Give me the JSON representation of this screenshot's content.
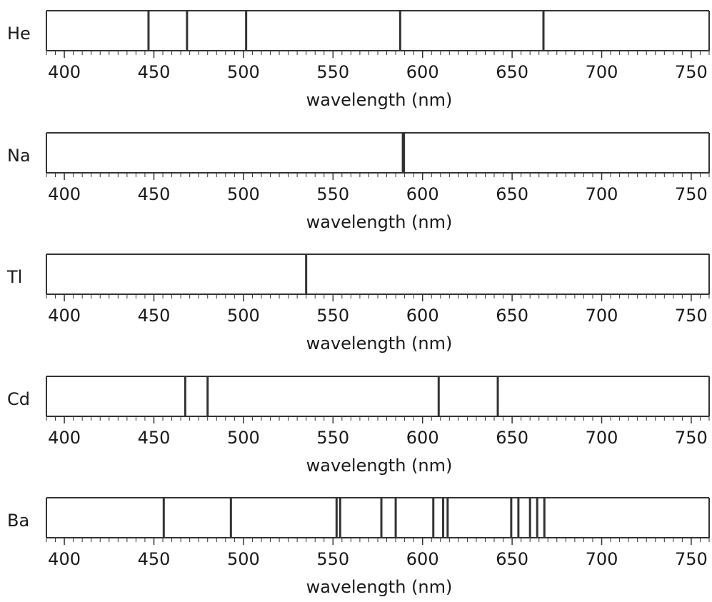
{
  "chart_data": [
    {
      "type": "spectrum",
      "element": "He",
      "xlabel": "wavelength (nm)",
      "xlim": [
        390,
        760
      ],
      "tick_labels": [
        "400",
        "450",
        "500",
        "550",
        "600",
        "650",
        "700",
        "750"
      ],
      "tick_values": [
        400,
        450,
        500,
        550,
        600,
        650,
        700,
        750
      ],
      "lines": [
        447,
        468.5,
        501.5,
        587.5,
        667.5
      ]
    },
    {
      "type": "spectrum",
      "element": "Na",
      "xlabel": "wavelength (nm)",
      "xlim": [
        390,
        760
      ],
      "tick_labels": [
        "400",
        "450",
        "500",
        "550",
        "600",
        "650",
        "700",
        "750"
      ],
      "tick_values": [
        400,
        450,
        500,
        550,
        600,
        650,
        700,
        750
      ],
      "lines": [
        589.0,
        589.6
      ]
    },
    {
      "type": "spectrum",
      "element": "Tl",
      "xlabel": "wavelength (nm)",
      "xlim": [
        390,
        760
      ],
      "tick_labels": [
        "400",
        "450",
        "500",
        "550",
        "600",
        "650",
        "700",
        "750"
      ],
      "tick_values": [
        400,
        450,
        500,
        550,
        600,
        650,
        700,
        750
      ],
      "lines": [
        535
      ]
    },
    {
      "type": "spectrum",
      "element": "Cd",
      "xlabel": "wavelength (nm)",
      "xlim": [
        390,
        760
      ],
      "tick_labels": [
        "400",
        "450",
        "500",
        "550",
        "600",
        "650",
        "700",
        "750"
      ],
      "tick_values": [
        400,
        450,
        500,
        550,
        600,
        650,
        700,
        750
      ],
      "lines": [
        467.5,
        480,
        609,
        642
      ]
    },
    {
      "type": "spectrum",
      "element": "Ba",
      "xlabel": "wavelength (nm)",
      "xlim": [
        390,
        760
      ],
      "tick_labels": [
        "400",
        "450",
        "500",
        "550",
        "600",
        "650",
        "700",
        "750"
      ],
      "tick_values": [
        400,
        450,
        500,
        550,
        600,
        650,
        700,
        750
      ],
      "lines": [
        455.5,
        493,
        552,
        554,
        577,
        585,
        606,
        611.5,
        614,
        649.5,
        653.5,
        660,
        664,
        668
      ]
    }
  ]
}
